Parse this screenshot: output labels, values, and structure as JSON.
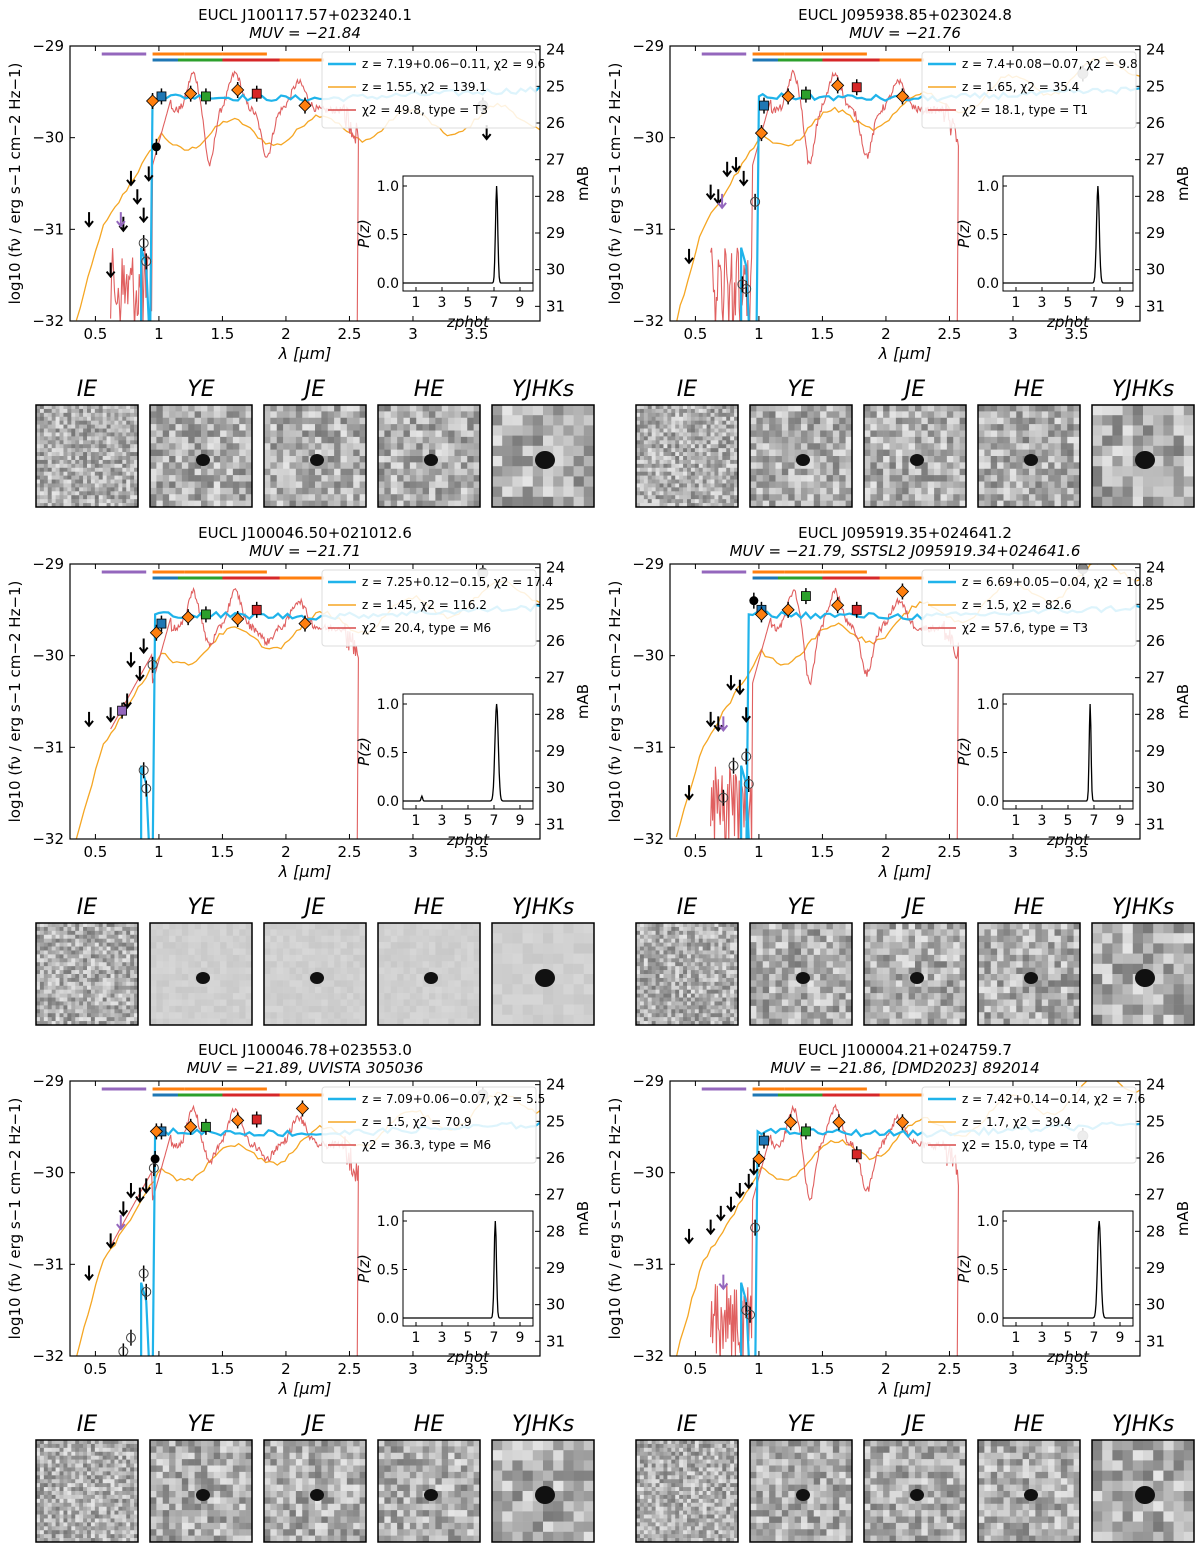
{
  "common": {
    "xlabel": "λ [µm]",
    "ylabel": "log10 (fν / erg s−1 cm−2 Hz−1)",
    "ylabel_right": "mAB",
    "inset_xlabel": "zphot",
    "inset_ylabel": "P(z)",
    "x_ticks": [
      "0.5",
      "1",
      "1.5",
      "2",
      "2.5",
      "3",
      "3.5"
    ],
    "y_ticks": [
      "−29",
      "−30",
      "−31",
      "−32"
    ],
    "mab_ticks": [
      "24",
      "25",
      "26",
      "27",
      "28",
      "29",
      "30",
      "31"
    ],
    "inset_x_ticks": [
      "1",
      "3",
      "5",
      "7",
      "9"
    ],
    "inset_y_ticks": [
      "1.0",
      "0.5",
      "0.0"
    ],
    "colors": {
      "galaxy_hz": "#1fb3ea",
      "galaxy_lz": "#f5a623",
      "dwarf": "#d94a4a",
      "pz": "#000000"
    },
    "band_bars": [
      {
        "name": "I",
        "color": "#9467bd",
        "range_um": [
          0.55,
          0.9
        ]
      },
      {
        "name": "Y",
        "color": "#1f77b4",
        "range_um": [
          0.95,
          1.2
        ]
      },
      {
        "name": "Y_E",
        "color": "#ff7f0e",
        "range_um": [
          0.95,
          1.2
        ]
      },
      {
        "name": "J",
        "color": "#2ca02c",
        "range_um": [
          1.15,
          1.55
        ]
      },
      {
        "name": "J_E",
        "color": "#ff7f0e",
        "range_um": [
          1.2,
          1.5
        ]
      },
      {
        "name": "H",
        "color": "#d62728",
        "range_um": [
          1.5,
          2.0
        ]
      },
      {
        "name": "H_E",
        "color": "#ff7f0e",
        "range_um": [
          1.5,
          1.85
        ]
      },
      {
        "name": "Ks",
        "color": "#ff7f0e",
        "range_um": [
          1.95,
          2.3
        ]
      }
    ],
    "stamp_labels": [
      "IE",
      "YE",
      "JE",
      "HE",
      "YJHKs"
    ]
  },
  "chart_data": [
    {
      "type": "line",
      "title": "EUCL J100117.57+023240.1",
      "subtitle": "MUV = −21.84",
      "xlim": [
        0.3,
        4.0
      ],
      "ylim": [
        -32,
        -29
      ],
      "legend": [
        {
          "label": "z = 7.19+0.06−0.11, χ2 = 9.6",
          "color": "galaxy_hz"
        },
        {
          "label": "z = 1.55, χ2 = 139.1",
          "color": "galaxy_lz"
        },
        {
          "label": "χ2 = 49.8, type = T3",
          "color": "dwarf"
        }
      ],
      "z_hi": 7.19,
      "z_lo": 1.55,
      "dwarf_type": "T3",
      "pz_peak": 7.2,
      "pz_width": 0.12,
      "phot_points": [
        {
          "x": 1.02,
          "y": -29.55,
          "marker": "square",
          "color": "#1f77b4"
        },
        {
          "x": 1.25,
          "y": -29.52,
          "marker": "diamond",
          "color": "#ff7f0e"
        },
        {
          "x": 1.37,
          "y": -29.55,
          "marker": "square",
          "color": "#2ca02c"
        },
        {
          "x": 1.62,
          "y": -29.48,
          "marker": "diamond",
          "color": "#ff7f0e"
        },
        {
          "x": 1.77,
          "y": -29.52,
          "marker": "square",
          "color": "#d62728"
        },
        {
          "x": 2.15,
          "y": -29.65,
          "marker": "diamond",
          "color": "#ff7f0e"
        },
        {
          "x": 0.95,
          "y": -29.6,
          "marker": "diamond",
          "color": "#ff7f0e"
        },
        {
          "x": 0.98,
          "y": -30.1,
          "marker": "dot",
          "color": "#000000"
        },
        {
          "x": 0.88,
          "y": -31.15,
          "marker": "circle",
          "color": "#000000"
        },
        {
          "x": 0.9,
          "y": -31.35,
          "marker": "circle",
          "color": "#000000"
        },
        {
          "x": 3.55,
          "y": -29.65,
          "marker": "gray",
          "color": "#888888"
        }
      ],
      "upper_limits": [
        [
          0.45,
          -30.9
        ],
        [
          0.62,
          -31.45
        ],
        [
          0.72,
          -30.95
        ],
        [
          0.78,
          -30.45
        ],
        [
          0.83,
          -30.65
        ],
        [
          0.88,
          -30.85
        ],
        [
          0.92,
          -30.4
        ],
        [
          3.58,
          -29.95
        ]
      ],
      "purple_limit": [
        0.7,
        -30.9
      ],
      "hi_cut_um": 0.93,
      "lo_knee": -29.8,
      "dwarf_spiky": true
    },
    {
      "type": "line",
      "title": "EUCL J095938.85+023024.8",
      "subtitle": "MUV = −21.76",
      "xlim": [
        0.3,
        4.0
      ],
      "ylim": [
        -32,
        -29
      ],
      "legend": [
        {
          "label": "z = 7.4+0.08−0.07, χ2 = 9.8",
          "color": "galaxy_hz"
        },
        {
          "label": "z = 1.65, χ2 = 35.4",
          "color": "galaxy_lz"
        },
        {
          "label": "χ2 = 18.1, type = T1",
          "color": "dwarf"
        }
      ],
      "z_hi": 7.4,
      "z_lo": 1.65,
      "dwarf_type": "T1",
      "pz_peak": 7.3,
      "pz_width": 0.15,
      "phot_points": [
        {
          "x": 1.04,
          "y": -29.65,
          "marker": "square",
          "color": "#1f77b4"
        },
        {
          "x": 1.23,
          "y": -29.55,
          "marker": "diamond",
          "color": "#ff7f0e"
        },
        {
          "x": 1.37,
          "y": -29.53,
          "marker": "square",
          "color": "#2ca02c"
        },
        {
          "x": 1.62,
          "y": -29.43,
          "marker": "diamond",
          "color": "#ff7f0e"
        },
        {
          "x": 1.77,
          "y": -29.45,
          "marker": "square",
          "color": "#d62728"
        },
        {
          "x": 2.13,
          "y": -29.55,
          "marker": "diamond",
          "color": "#ff7f0e"
        },
        {
          "x": 1.02,
          "y": -29.95,
          "marker": "diamond",
          "color": "#ff7f0e"
        },
        {
          "x": 0.97,
          "y": -30.7,
          "marker": "circle",
          "color": "#000000"
        },
        {
          "x": 0.9,
          "y": -31.65,
          "marker": "circle",
          "color": "#000000"
        },
        {
          "x": 0.87,
          "y": -31.6,
          "marker": "circle",
          "color": "#000000"
        },
        {
          "x": 3.55,
          "y": -29.3,
          "marker": "gray",
          "color": "#888888"
        }
      ],
      "upper_limits": [
        [
          0.45,
          -31.3
        ],
        [
          0.62,
          -30.6
        ],
        [
          0.68,
          -30.65
        ],
        [
          0.75,
          -30.35
        ],
        [
          0.82,
          -30.3
        ],
        [
          0.88,
          -30.45
        ]
      ],
      "purple_limit": [
        0.71,
        -30.7
      ],
      "hi_cut_um": 0.98,
      "lo_knee": -29.3,
      "dwarf_spiky": true
    },
    {
      "type": "line",
      "title": "EUCL J100046.50+021012.6",
      "subtitle": "MUV = −21.71",
      "xlim": [
        0.3,
        4.0
      ],
      "ylim": [
        -32,
        -29
      ],
      "legend": [
        {
          "label": "z = 7.25+0.12−0.15, χ2 = 17.4",
          "color": "galaxy_hz"
        },
        {
          "label": "z = 1.45, χ2 = 116.2",
          "color": "galaxy_lz"
        },
        {
          "label": "χ2 = 20.4, type = M6",
          "color": "dwarf"
        }
      ],
      "z_hi": 7.25,
      "z_lo": 1.45,
      "dwarf_type": "M6",
      "pz_peak": 7.2,
      "pz_width": 0.18,
      "phot_points": [
        {
          "x": 1.02,
          "y": -29.65,
          "marker": "square",
          "color": "#1f77b4"
        },
        {
          "x": 1.23,
          "y": -29.58,
          "marker": "diamond",
          "color": "#ff7f0e"
        },
        {
          "x": 1.37,
          "y": -29.55,
          "marker": "square",
          "color": "#2ca02c"
        },
        {
          "x": 1.62,
          "y": -29.6,
          "marker": "diamond",
          "color": "#ff7f0e"
        },
        {
          "x": 1.77,
          "y": -29.5,
          "marker": "square",
          "color": "#d62728"
        },
        {
          "x": 2.15,
          "y": -29.65,
          "marker": "diamond",
          "color": "#ff7f0e"
        },
        {
          "x": 0.98,
          "y": -29.75,
          "marker": "diamond",
          "color": "#ff7f0e"
        },
        {
          "x": 0.71,
          "y": -30.6,
          "marker": "square",
          "color": "#9467bd"
        },
        {
          "x": 0.95,
          "y": -30.1,
          "marker": "circle",
          "color": "#000000"
        },
        {
          "x": 0.88,
          "y": -31.25,
          "marker": "circle",
          "color": "#000000"
        },
        {
          "x": 0.9,
          "y": -31.45,
          "marker": "circle",
          "color": "#000000"
        },
        {
          "x": 3.55,
          "y": -29.1,
          "marker": "gray",
          "color": "#888888"
        }
      ],
      "upper_limits": [
        [
          0.45,
          -30.7
        ],
        [
          0.62,
          -30.65
        ],
        [
          0.75,
          -30.5
        ],
        [
          0.78,
          -30.05
        ],
        [
          0.85,
          -30.2
        ],
        [
          0.88,
          -29.9
        ]
      ],
      "purple_limit": null,
      "hi_cut_um": 0.95,
      "lo_knee": -29.35,
      "dwarf_spiky": false
    },
    {
      "type": "line",
      "title": "EUCL J095919.35+024641.2",
      "subtitle": "MUV = −21.79, SSTSL2 J095919.34+024641.6",
      "xlim": [
        0.3,
        4.0
      ],
      "ylim": [
        -32,
        -29
      ],
      "legend": [
        {
          "label": "z = 6.69+0.05−0.04, χ2 = 10.8",
          "color": "galaxy_hz"
        },
        {
          "label": "z = 1.5, χ2 = 82.6",
          "color": "galaxy_lz"
        },
        {
          "label": "χ2 = 57.6, type = T3",
          "color": "dwarf"
        }
      ],
      "z_hi": 6.69,
      "z_lo": 1.5,
      "dwarf_type": "T3",
      "pz_peak": 6.7,
      "pz_width": 0.1,
      "phot_points": [
        {
          "x": 1.02,
          "y": -29.5,
          "marker": "square",
          "color": "#1f77b4"
        },
        {
          "x": 1.23,
          "y": -29.5,
          "marker": "diamond",
          "color": "#ff7f0e"
        },
        {
          "x": 1.37,
          "y": -29.35,
          "marker": "square",
          "color": "#2ca02c"
        },
        {
          "x": 1.62,
          "y": -29.45,
          "marker": "diamond",
          "color": "#ff7f0e"
        },
        {
          "x": 1.77,
          "y": -29.5,
          "marker": "square",
          "color": "#d62728"
        },
        {
          "x": 2.13,
          "y": -29.3,
          "marker": "diamond",
          "color": "#ff7f0e"
        },
        {
          "x": 1.02,
          "y": -29.55,
          "marker": "diamond",
          "color": "#ff7f0e"
        },
        {
          "x": 0.96,
          "y": -29.4,
          "marker": "dot",
          "color": "#000000"
        },
        {
          "x": 0.9,
          "y": -31.1,
          "marker": "circle",
          "color": "#000000"
        },
        {
          "x": 0.8,
          "y": -31.2,
          "marker": "circle",
          "color": "#000000"
        },
        {
          "x": 0.92,
          "y": -31.4,
          "marker": "circle",
          "color": "#000000"
        },
        {
          "x": 0.72,
          "y": -31.55,
          "marker": "circle",
          "color": "#000000"
        },
        {
          "x": 3.55,
          "y": -29.05,
          "marker": "gray",
          "color": "#888888"
        }
      ],
      "upper_limits": [
        [
          0.45,
          -31.5
        ],
        [
          0.62,
          -30.7
        ],
        [
          0.68,
          -30.75
        ],
        [
          0.78,
          -30.3
        ],
        [
          0.85,
          -30.35
        ],
        [
          0.9,
          -30.65
        ]
      ],
      "purple_limit": [
        0.72,
        -30.75
      ],
      "hi_cut_um": 0.9,
      "lo_knee": -29.15,
      "dwarf_spiky": true
    },
    {
      "type": "line",
      "title": "EUCL J100046.78+023553.0",
      "subtitle": "MUV = −21.89, UVISTA 305036",
      "xlim": [
        0.3,
        4.0
      ],
      "ylim": [
        -32,
        -29
      ],
      "legend": [
        {
          "label": "z = 7.09+0.06−0.07, χ2 = 5.5",
          "color": "galaxy_hz"
        },
        {
          "label": "z = 1.5, χ2 = 70.9",
          "color": "galaxy_lz"
        },
        {
          "label": "χ2 = 36.3, type = M6",
          "color": "dwarf"
        }
      ],
      "z_hi": 7.09,
      "z_lo": 1.5,
      "dwarf_type": "M6",
      "pz_peak": 7.1,
      "pz_width": 0.12,
      "phot_points": [
        {
          "x": 1.02,
          "y": -29.55,
          "marker": "square",
          "color": "#1f77b4"
        },
        {
          "x": 1.25,
          "y": -29.5,
          "marker": "diamond",
          "color": "#ff7f0e"
        },
        {
          "x": 1.37,
          "y": -29.5,
          "marker": "square",
          "color": "#2ca02c"
        },
        {
          "x": 1.62,
          "y": -29.43,
          "marker": "diamond",
          "color": "#ff7f0e"
        },
        {
          "x": 1.77,
          "y": -29.42,
          "marker": "square",
          "color": "#d62728"
        },
        {
          "x": 2.13,
          "y": -29.3,
          "marker": "diamond",
          "color": "#ff7f0e"
        },
        {
          "x": 0.98,
          "y": -29.55,
          "marker": "diamond",
          "color": "#ff7f0e"
        },
        {
          "x": 0.97,
          "y": -29.85,
          "marker": "dot",
          "color": "#000000"
        },
        {
          "x": 0.96,
          "y": -29.95,
          "marker": "circle",
          "color": "#000000"
        },
        {
          "x": 0.88,
          "y": -31.1,
          "marker": "circle",
          "color": "#000000"
        },
        {
          "x": 0.9,
          "y": -31.3,
          "marker": "circle",
          "color": "#000000"
        },
        {
          "x": 0.78,
          "y": -31.8,
          "marker": "circle",
          "color": "#000000"
        },
        {
          "x": 0.72,
          "y": -31.95,
          "marker": "circle",
          "color": "#000000"
        },
        {
          "x": 3.55,
          "y": -29.15,
          "marker": "gray",
          "color": "#888888"
        }
      ],
      "upper_limits": [
        [
          0.45,
          -31.1
        ],
        [
          0.62,
          -30.75
        ],
        [
          0.72,
          -30.4
        ],
        [
          0.78,
          -30.2
        ],
        [
          0.85,
          -30.25
        ],
        [
          0.9,
          -30.15
        ]
      ],
      "purple_limit": [
        0.7,
        -30.55
      ],
      "hi_cut_um": 0.95,
      "lo_knee": -29.3,
      "dwarf_spiky": false
    },
    {
      "type": "line",
      "title": "EUCL J100004.21+024759.7",
      "subtitle": "MUV = −21.86, [DMD2023] 892014",
      "xlim": [
        0.3,
        4.0
      ],
      "ylim": [
        -32,
        -29
      ],
      "legend": [
        {
          "label": "z = 7.42+0.14−0.14, χ2 = 7.6",
          "color": "galaxy_hz"
        },
        {
          "label": "z = 1.7, χ2 = 39.4",
          "color": "galaxy_lz"
        },
        {
          "label": "χ2 = 15.0, type = T4",
          "color": "dwarf"
        }
      ],
      "z_hi": 7.42,
      "z_lo": 1.7,
      "dwarf_type": "T4",
      "pz_peak": 7.4,
      "pz_width": 0.18,
      "phot_points": [
        {
          "x": 1.04,
          "y": -29.65,
          "marker": "square",
          "color": "#1f77b4"
        },
        {
          "x": 1.25,
          "y": -29.45,
          "marker": "diamond",
          "color": "#ff7f0e"
        },
        {
          "x": 1.37,
          "y": -29.55,
          "marker": "square",
          "color": "#2ca02c"
        },
        {
          "x": 1.63,
          "y": -29.45,
          "marker": "diamond",
          "color": "#ff7f0e"
        },
        {
          "x": 1.77,
          "y": -29.8,
          "marker": "square",
          "color": "#d62728"
        },
        {
          "x": 2.13,
          "y": -29.45,
          "marker": "diamond",
          "color": "#ff7f0e"
        },
        {
          "x": 1.0,
          "y": -29.85,
          "marker": "diamond",
          "color": "#ff7f0e"
        },
        {
          "x": 0.97,
          "y": -30.6,
          "marker": "circle",
          "color": "#000000"
        },
        {
          "x": 0.9,
          "y": -31.5,
          "marker": "circle",
          "color": "#000000"
        },
        {
          "x": 0.93,
          "y": -31.55,
          "marker": "circle",
          "color": "#000000"
        },
        {
          "x": 3.55,
          "y": -29.6,
          "marker": "gray",
          "color": "#888888"
        }
      ],
      "upper_limits": [
        [
          0.45,
          -30.7
        ],
        [
          0.62,
          -30.6
        ],
        [
          0.7,
          -30.45
        ],
        [
          0.78,
          -30.35
        ],
        [
          0.85,
          -30.2
        ],
        [
          0.92,
          -30.1
        ],
        [
          0.96,
          -29.95
        ]
      ],
      "purple_limit": [
        0.72,
        -31.2
      ],
      "hi_cut_um": 0.97,
      "lo_knee": -29.1,
      "dwarf_spiky": true
    }
  ]
}
